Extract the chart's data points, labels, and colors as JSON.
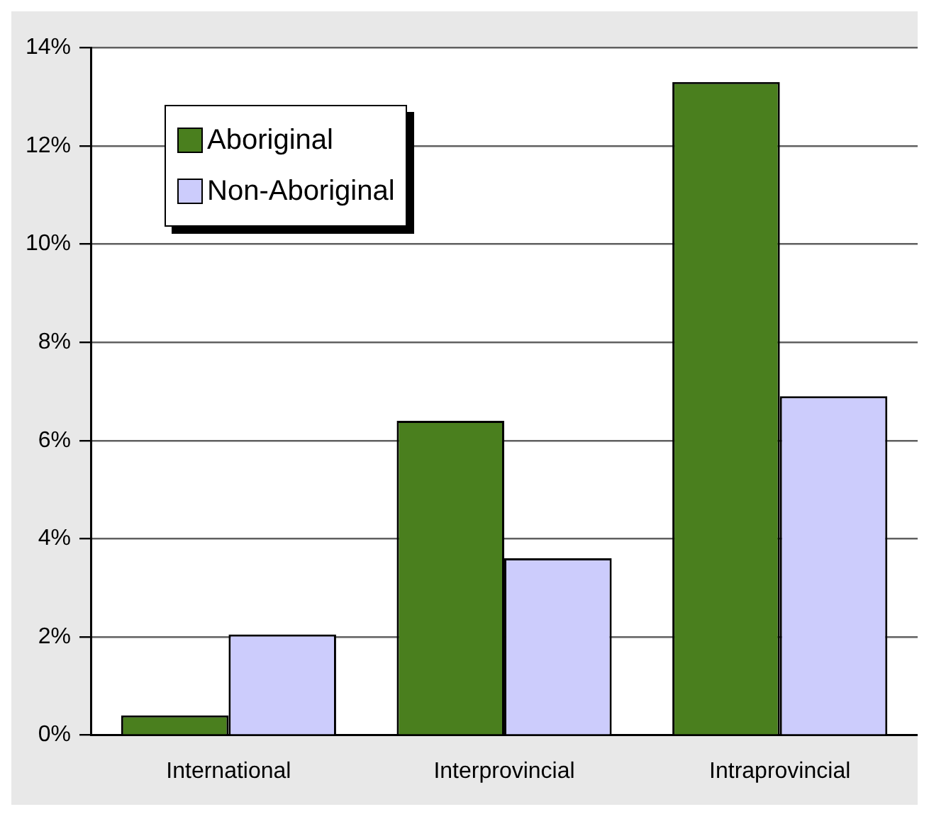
{
  "chart_data": {
    "type": "bar",
    "categories": [
      "International",
      "Interprovincial",
      "Intraprovincial"
    ],
    "series": [
      {
        "name": "Aboriginal",
        "color": "#4a7f1e",
        "values": [
          0.4,
          6.4,
          13.3
        ]
      },
      {
        "name": "Non-Aboriginal",
        "color": "#ccccfc",
        "values": [
          2.05,
          3.6,
          6.9
        ]
      }
    ],
    "ylim": [
      0,
      14
    ],
    "yticks": [
      {
        "value": 0,
        "label": "0%"
      },
      {
        "value": 2,
        "label": "2%"
      },
      {
        "value": 4,
        "label": "4%"
      },
      {
        "value": 6,
        "label": "6%"
      },
      {
        "value": 8,
        "label": "8%"
      },
      {
        "value": 10,
        "label": "10%"
      },
      {
        "value": 12,
        "label": "12%"
      },
      {
        "value": 14,
        "label": "14%"
      }
    ],
    "grid": "y",
    "legend": "top left"
  }
}
